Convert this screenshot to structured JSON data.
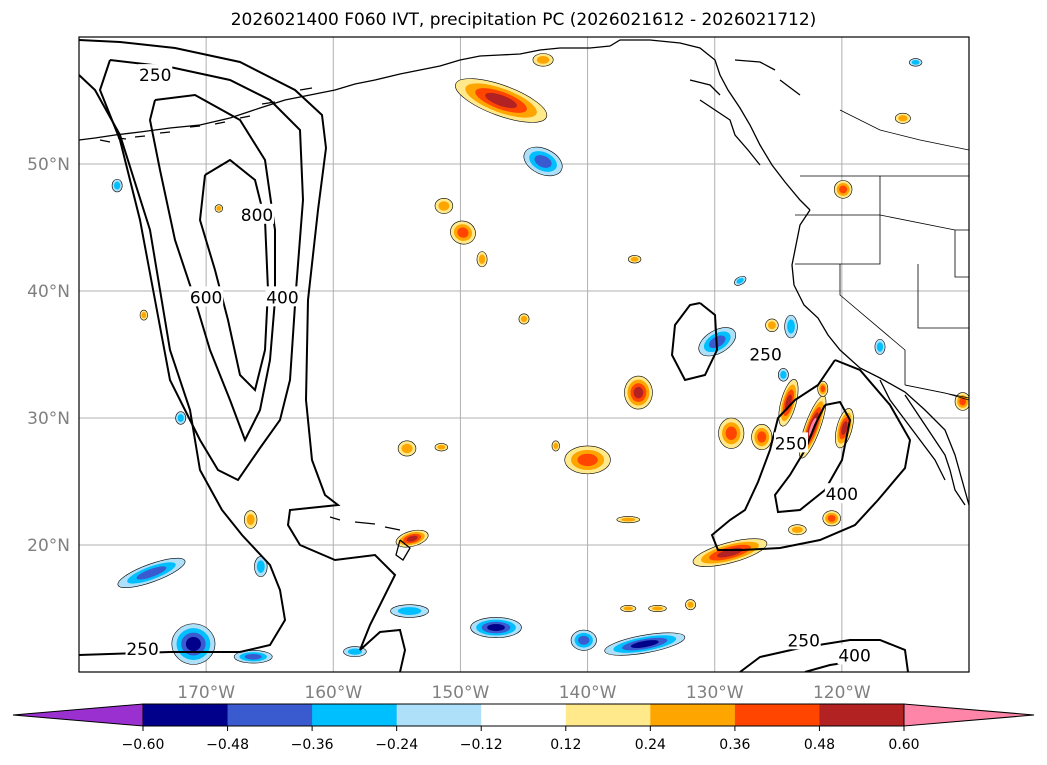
{
  "title": "2026021400 F060 IVT, precipitation PC (2026021612 - 2026021712)",
  "map": {
    "projection": "Plate Carree",
    "lon_range": [
      -180,
      -110
    ],
    "lat_range": [
      10,
      60
    ],
    "lat_ticks": [
      {
        "value": 20,
        "label": "20°N"
      },
      {
        "value": 30,
        "label": "30°N"
      },
      {
        "value": 40,
        "label": "40°N"
      },
      {
        "value": 50,
        "label": "50°N"
      }
    ],
    "lon_ticks": [
      {
        "value": -170,
        "label": "170°W"
      },
      {
        "value": -160,
        "label": "160°W"
      },
      {
        "value": -150,
        "label": "150°W"
      },
      {
        "value": -140,
        "label": "140°W"
      },
      {
        "value": -130,
        "label": "130°W"
      },
      {
        "value": -120,
        "label": "120°W"
      }
    ],
    "grid": true,
    "ivt_contour_levels": [
      250,
      400,
      600,
      800
    ],
    "ivt_contour_labels": [
      {
        "text": "250",
        "lon": -174,
        "lat": 57.0
      },
      {
        "text": "800",
        "lon": -166,
        "lat": 46.0
      },
      {
        "text": "600",
        "lon": -170,
        "lat": 39.5
      },
      {
        "text": "400",
        "lon": -164,
        "lat": 39.5
      },
      {
        "text": "250",
        "lon": -126,
        "lat": 35.0
      },
      {
        "text": "250",
        "lon": -124,
        "lat": 28.0
      },
      {
        "text": "400",
        "lon": -120,
        "lat": 24.0
      },
      {
        "text": "250",
        "lon": -123,
        "lat": 12.5
      },
      {
        "text": "400",
        "lon": -119,
        "lat": 11.3
      },
      {
        "text": "250",
        "lon": -175,
        "lat": 11.8
      }
    ]
  },
  "colorbar": {
    "ticks": [
      "−0.60",
      "−0.48",
      "−0.36",
      "−0.24",
      "−0.12",
      "0.12",
      "0.24",
      "0.36",
      "0.48",
      "0.60"
    ],
    "colors": [
      "#9b30d0",
      "#00008b",
      "#3a5bd0",
      "#00bfff",
      "#aee0fa",
      "#ffffff",
      "#ffe98a",
      "#ffa500",
      "#ff4500",
      "#b22222",
      "#ff85a8",
      "#ff85a8"
    ],
    "extend": "both"
  },
  "precip_blobs": [
    {
      "lon": -146.8,
      "lat": 55.0,
      "rx": 3.8,
      "ry": 1.2,
      "rot": 20,
      "sign": "pos",
      "level": 3
    },
    {
      "lon": -143.5,
      "lat": 58.2,
      "rx": 0.8,
      "ry": 0.5,
      "rot": 0,
      "sign": "pos",
      "level": 1
    },
    {
      "lon": -143.5,
      "lat": 50.2,
      "rx": 1.6,
      "ry": 1.0,
      "rot": 25,
      "sign": "neg",
      "level": 2
    },
    {
      "lon": -151.3,
      "lat": 46.7,
      "rx": 0.7,
      "ry": 0.6,
      "rot": 0,
      "sign": "pos",
      "level": 1
    },
    {
      "lon": -149.8,
      "lat": 44.6,
      "rx": 1.0,
      "ry": 0.9,
      "rot": 20,
      "sign": "pos",
      "level": 2
    },
    {
      "lon": -148.3,
      "lat": 42.5,
      "rx": 0.4,
      "ry": 0.6,
      "rot": 0,
      "sign": "pos",
      "level": 1
    },
    {
      "lon": -145.0,
      "lat": 37.8,
      "rx": 0.4,
      "ry": 0.4,
      "rot": 0,
      "sign": "pos",
      "level": 1
    },
    {
      "lon": -136.0,
      "lat": 32.0,
      "rx": 1.1,
      "ry": 1.3,
      "rot": 0,
      "sign": "pos",
      "level": 3
    },
    {
      "lon": -140.0,
      "lat": 26.7,
      "rx": 1.8,
      "ry": 1.1,
      "rot": 0,
      "sign": "pos",
      "level": 2
    },
    {
      "lon": -142.5,
      "lat": 27.8,
      "rx": 0.3,
      "ry": 0.4,
      "rot": 0,
      "sign": "pos",
      "level": 1
    },
    {
      "lon": -154.2,
      "lat": 27.6,
      "rx": 0.7,
      "ry": 0.6,
      "rot": 0,
      "sign": "pos",
      "level": 1
    },
    {
      "lon": -151.5,
      "lat": 27.7,
      "rx": 0.5,
      "ry": 0.3,
      "rot": 0,
      "sign": "pos",
      "level": 1
    },
    {
      "lon": -153.8,
      "lat": 20.5,
      "rx": 1.3,
      "ry": 0.6,
      "rot": -15,
      "sign": "pos",
      "level": 3
    },
    {
      "lon": -136.3,
      "lat": 42.5,
      "rx": 0.5,
      "ry": 0.3,
      "rot": 0,
      "sign": "pos",
      "level": 1
    },
    {
      "lon": -128.7,
      "lat": 28.8,
      "rx": 1.0,
      "ry": 1.2,
      "rot": 0,
      "sign": "pos",
      "level": 2
    },
    {
      "lon": -126.3,
      "lat": 28.5,
      "rx": 0.8,
      "ry": 1.0,
      "rot": 0,
      "sign": "pos",
      "level": 2
    },
    {
      "lon": -124.2,
      "lat": 31.2,
      "rx": 0.6,
      "ry": 1.9,
      "rot": 15,
      "sign": "pos",
      "level": 3
    },
    {
      "lon": -122.3,
      "lat": 29.3,
      "rx": 0.6,
      "ry": 2.6,
      "rot": 20,
      "sign": "pos",
      "level": 4
    },
    {
      "lon": -121.5,
      "lat": 32.3,
      "rx": 0.4,
      "ry": 0.6,
      "rot": 0,
      "sign": "pos",
      "level": 2
    },
    {
      "lon": -119.8,
      "lat": 29.2,
      "rx": 0.6,
      "ry": 1.6,
      "rot": 15,
      "sign": "pos",
      "level": 3
    },
    {
      "lon": -120.8,
      "lat": 22.1,
      "rx": 0.7,
      "ry": 0.6,
      "rot": 0,
      "sign": "pos",
      "level": 2
    },
    {
      "lon": -123.5,
      "lat": 21.2,
      "rx": 0.7,
      "ry": 0.4,
      "rot": 0,
      "sign": "pos",
      "level": 1
    },
    {
      "lon": -128.8,
      "lat": 19.4,
      "rx": 3.0,
      "ry": 0.8,
      "rot": -15,
      "sign": "pos",
      "level": 3
    },
    {
      "lon": -125.5,
      "lat": 37.3,
      "rx": 0.5,
      "ry": 0.5,
      "rot": 0,
      "sign": "pos",
      "level": 1
    },
    {
      "lon": -136.8,
      "lat": 22.0,
      "rx": 0.9,
      "ry": 0.25,
      "rot": 0,
      "sign": "pos",
      "level": 1
    },
    {
      "lon": -134.5,
      "lat": 15.0,
      "rx": 0.7,
      "ry": 0.25,
      "rot": 0,
      "sign": "pos",
      "level": 1
    },
    {
      "lon": -136.8,
      "lat": 15.0,
      "rx": 0.6,
      "ry": 0.25,
      "rot": 0,
      "sign": "pos",
      "level": 1
    },
    {
      "lon": -131.9,
      "lat": 15.3,
      "rx": 0.4,
      "ry": 0.4,
      "rot": 0,
      "sign": "pos",
      "level": 1
    },
    {
      "lon": -119.9,
      "lat": 48.0,
      "rx": 0.7,
      "ry": 0.7,
      "rot": 0,
      "sign": "pos",
      "level": 2
    },
    {
      "lon": -115.2,
      "lat": 53.6,
      "rx": 0.6,
      "ry": 0.4,
      "rot": 0,
      "sign": "pos",
      "level": 1
    },
    {
      "lon": -110.5,
      "lat": 31.3,
      "rx": 0.6,
      "ry": 0.7,
      "rot": 0,
      "sign": "pos",
      "level": 2
    },
    {
      "lon": -166.5,
      "lat": 22.0,
      "rx": 0.5,
      "ry": 0.7,
      "rot": 0,
      "sign": "pos",
      "level": 1
    },
    {
      "lon": -169.0,
      "lat": 46.5,
      "rx": 0.3,
      "ry": 0.3,
      "rot": 0,
      "sign": "pos",
      "level": 1
    },
    {
      "lon": -174.9,
      "lat": 38.1,
      "rx": 0.3,
      "ry": 0.4,
      "rot": 0,
      "sign": "pos",
      "level": 1
    },
    {
      "lon": -129.8,
      "lat": 36.0,
      "rx": 1.6,
      "ry": 0.9,
      "rot": -30,
      "sign": "neg",
      "level": 2
    },
    {
      "lon": -124.0,
      "lat": 37.2,
      "rx": 0.5,
      "ry": 0.9,
      "rot": 0,
      "sign": "neg",
      "level": 1
    },
    {
      "lon": -124.6,
      "lat": 33.4,
      "rx": 0.4,
      "ry": 0.5,
      "rot": 0,
      "sign": "neg",
      "level": 1
    },
    {
      "lon": -117.0,
      "lat": 35.6,
      "rx": 0.4,
      "ry": 0.6,
      "rot": 0,
      "sign": "neg",
      "level": 1
    },
    {
      "lon": -128.0,
      "lat": 40.8,
      "rx": 0.5,
      "ry": 0.3,
      "rot": -30,
      "sign": "neg",
      "level": 1
    },
    {
      "lon": -174.3,
      "lat": 17.8,
      "rx": 2.8,
      "ry": 0.7,
      "rot": -20,
      "sign": "neg",
      "level": 2
    },
    {
      "lon": -171.0,
      "lat": 12.2,
      "rx": 1.7,
      "ry": 1.6,
      "rot": 0,
      "sign": "neg",
      "level": 3
    },
    {
      "lon": -166.3,
      "lat": 11.2,
      "rx": 1.5,
      "ry": 0.5,
      "rot": 0,
      "sign": "neg",
      "level": 2
    },
    {
      "lon": -165.7,
      "lat": 18.3,
      "rx": 0.5,
      "ry": 0.8,
      "rot": 0,
      "sign": "neg",
      "level": 1
    },
    {
      "lon": -154.0,
      "lat": 14.8,
      "rx": 1.5,
      "ry": 0.5,
      "rot": 0,
      "sign": "neg",
      "level": 1
    },
    {
      "lon": -147.2,
      "lat": 13.5,
      "rx": 2.0,
      "ry": 0.8,
      "rot": 0,
      "sign": "neg",
      "level": 3
    },
    {
      "lon": -140.3,
      "lat": 12.5,
      "rx": 1.0,
      "ry": 0.8,
      "rot": 0,
      "sign": "neg",
      "level": 2
    },
    {
      "lon": -135.5,
      "lat": 12.2,
      "rx": 3.2,
      "ry": 0.7,
      "rot": -10,
      "sign": "neg",
      "level": 3
    },
    {
      "lon": -158.3,
      "lat": 11.6,
      "rx": 0.9,
      "ry": 0.4,
      "rot": 0,
      "sign": "neg",
      "level": 1
    },
    {
      "lon": -172.0,
      "lat": 30.0,
      "rx": 0.4,
      "ry": 0.5,
      "rot": 0,
      "sign": "neg",
      "level": 1
    },
    {
      "lon": -177.0,
      "lat": 48.3,
      "rx": 0.4,
      "ry": 0.5,
      "rot": 0,
      "sign": "neg",
      "level": 1
    },
    {
      "lon": -114.2,
      "lat": 58.0,
      "rx": 0.5,
      "ry": 0.3,
      "rot": 0,
      "sign": "neg",
      "level": 1
    }
  ]
}
